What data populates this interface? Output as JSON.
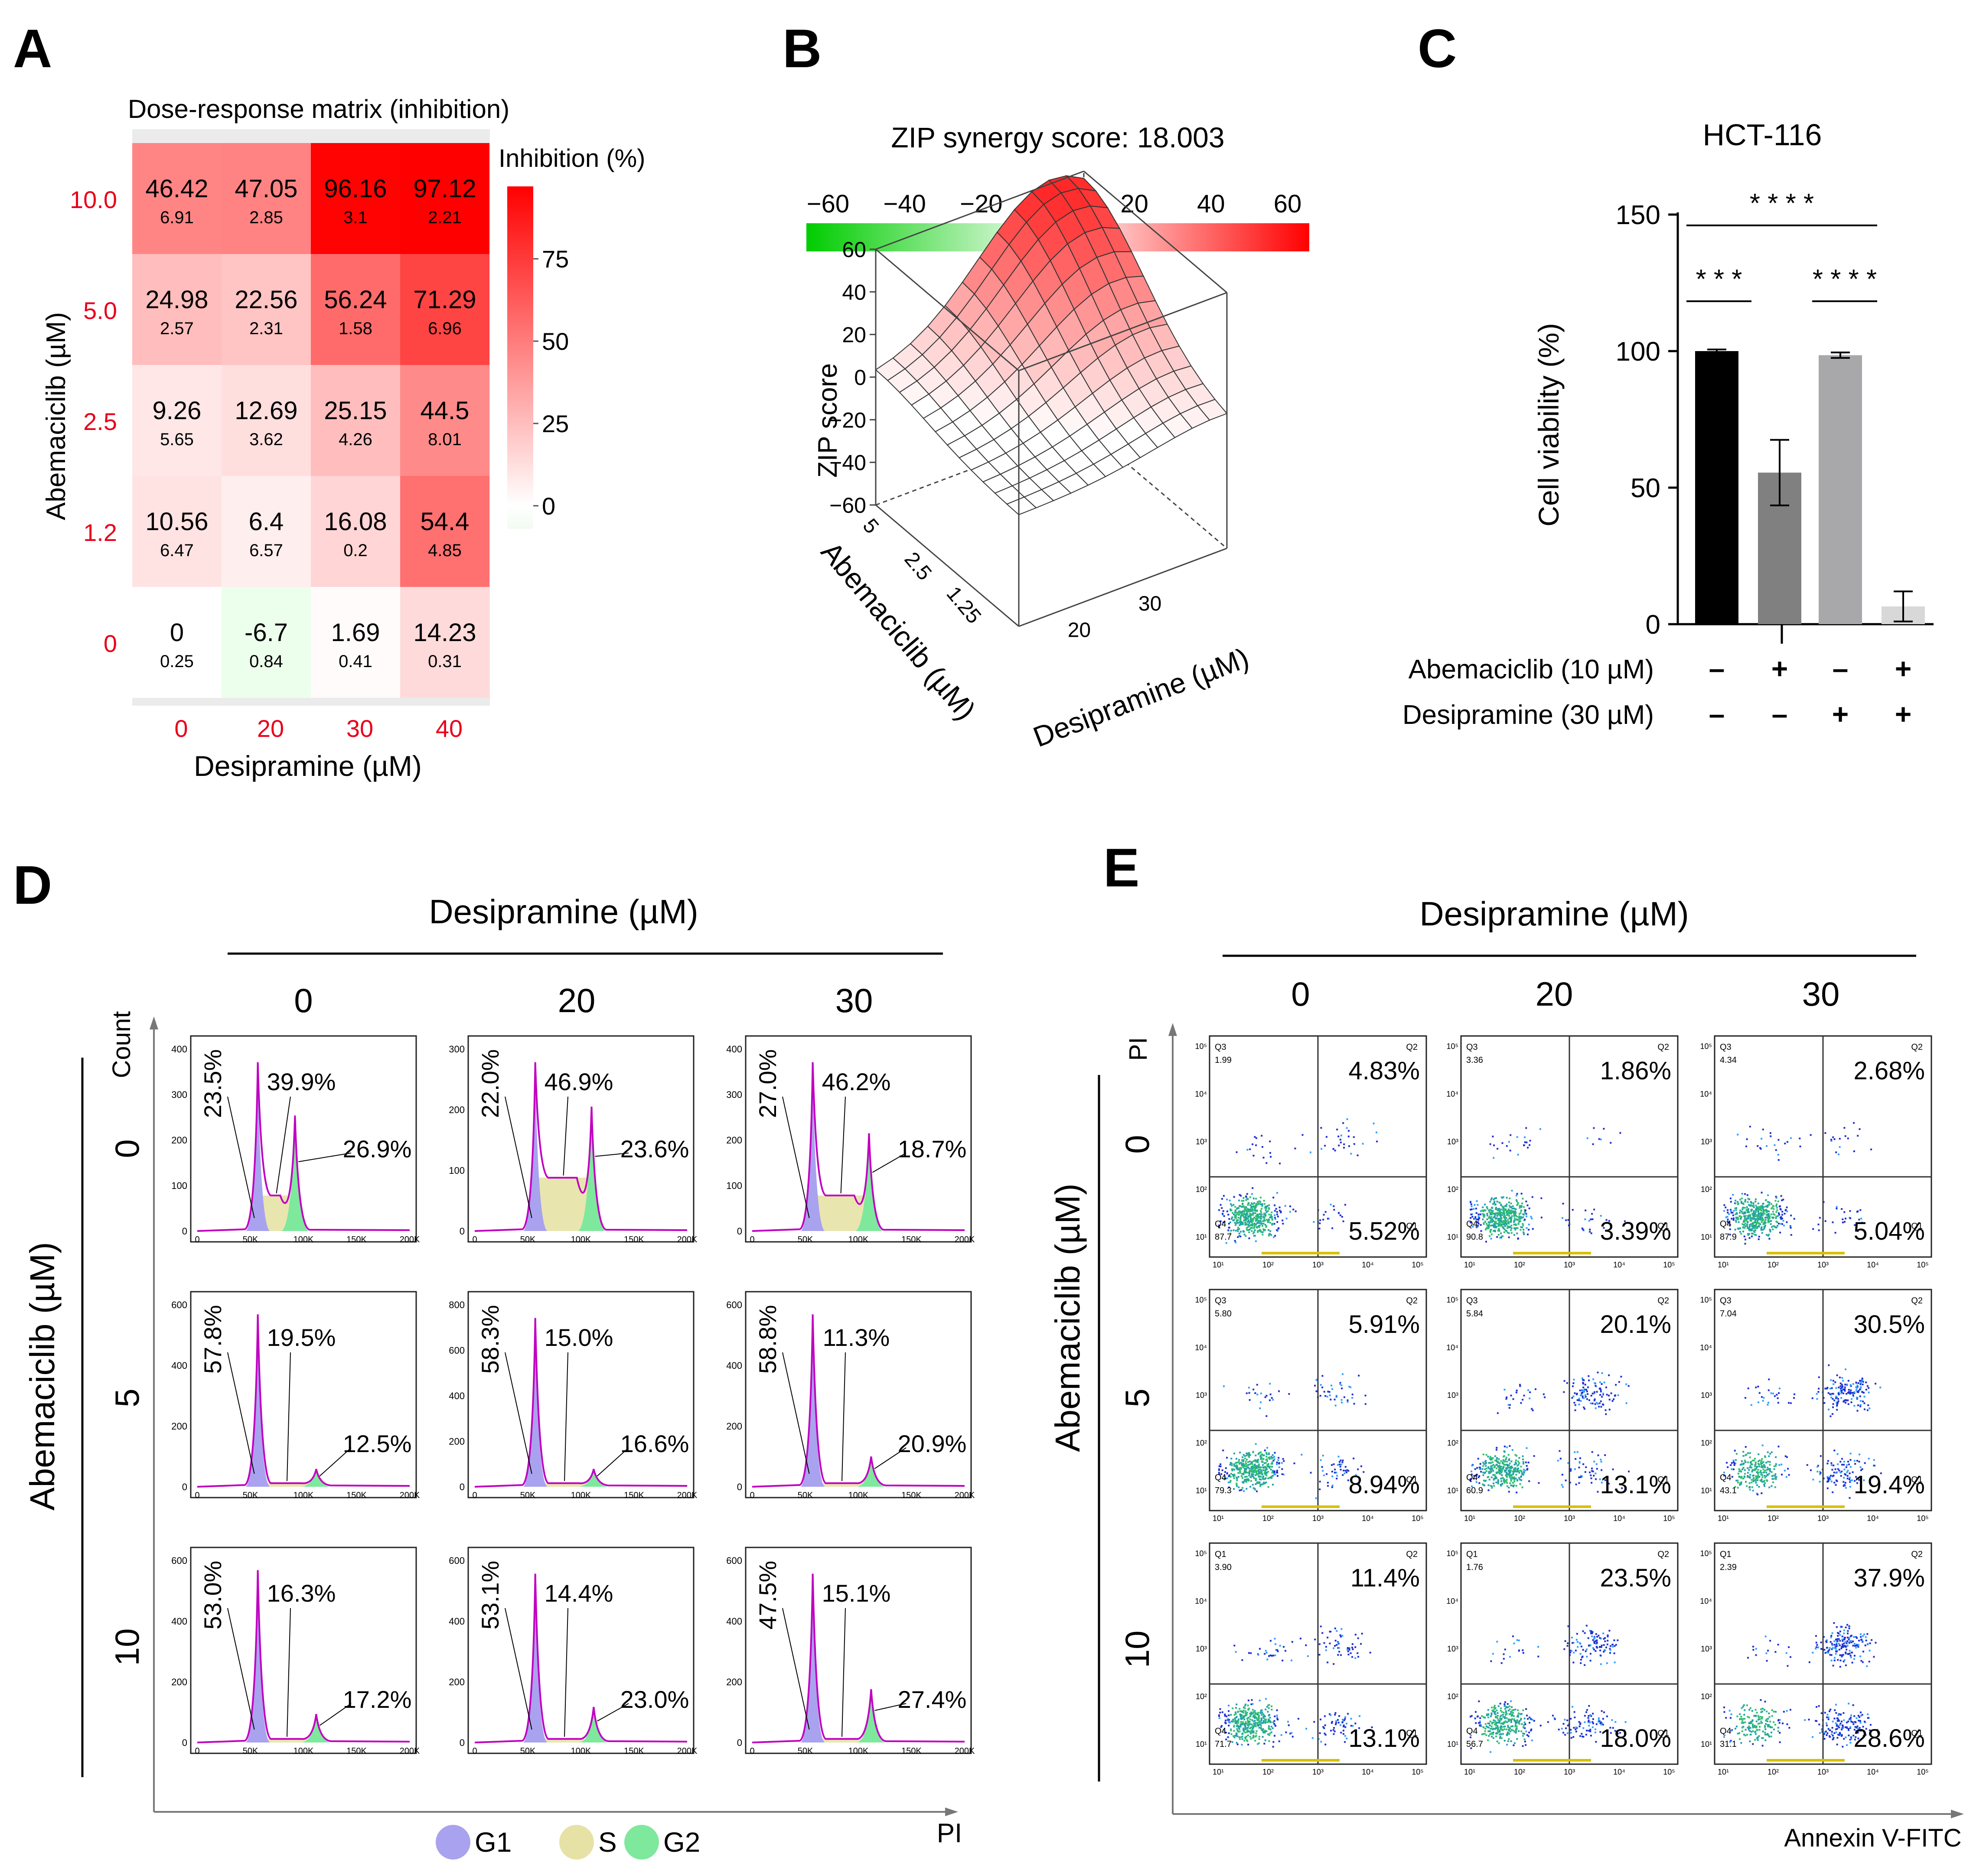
{
  "panels": {
    "A": "A",
    "B": "B",
    "C": "C",
    "D": "D",
    "E": "E"
  },
  "colors": {
    "red_label": "#e8001a",
    "heat_max": "#ff0000",
    "heat_zero": "#ffffff",
    "heat_neg": "#00c000",
    "g1": "#a9a2ee",
    "s": "#e6e2a6",
    "g2": "#7ee89d",
    "magenta": "#c000c0",
    "bar_black": "#000000",
    "bar_dgray": "#808080",
    "bar_lgray": "#a8a8ab",
    "bar_vlgray": "#d8d8d8"
  },
  "chart_data": [
    {
      "type": "heatmap",
      "title": "Dose-response matrix (inhibition)",
      "xlabel": "Desipramine (µM)",
      "ylabel": "Abemaciclib (µM)",
      "x_ticks": [
        "0",
        "20",
        "30",
        "40"
      ],
      "y_ticks": [
        "10.0",
        "5.0",
        "2.5",
        "1.2",
        "0"
      ],
      "values": [
        [
          "46.42",
          "47.05",
          "96.16",
          "97.12"
        ],
        [
          "24.98",
          "22.56",
          "56.24",
          "71.29"
        ],
        [
          "9.26",
          "12.69",
          "25.15",
          "44.5"
        ],
        [
          "10.56",
          "6.4",
          "16.08",
          "54.4"
        ],
        [
          "0",
          "-6.7",
          "1.69",
          "14.23"
        ]
      ],
      "sd": [
        [
          "6.91",
          "2.85",
          "3.1",
          "2.21"
        ],
        [
          "2.57",
          "2.31",
          "1.58",
          "6.96"
        ],
        [
          "5.65",
          "3.62",
          "4.26",
          "8.01"
        ],
        [
          "6.47",
          "6.57",
          "0.2",
          "4.85"
        ],
        [
          "0.25",
          "0.84",
          "0.41",
          "0.31"
        ]
      ],
      "colorbar": {
        "title": "Inhibition (%)",
        "ticks": [
          "75",
          "50",
          "25",
          "0"
        ],
        "range": [
          -7,
          97
        ]
      }
    },
    {
      "type": "surface3d",
      "title": "ZIP synergy score: 18.003",
      "zlabel": "ZIP score",
      "xlabel": "Abemaciclib (µM)",
      "ylabel": "Desipramine (µM)",
      "z_ticks": [
        "60",
        "40",
        "20",
        "0",
        "-20",
        "-40",
        "-60"
      ],
      "x_ticks": [
        "5",
        "2.5",
        "1.25"
      ],
      "y_ticks": [
        "20",
        "30"
      ],
      "zlim": [
        -60,
        60
      ],
      "colorbar": {
        "ticks": [
          "-60",
          "-40",
          "-20",
          "0",
          "20",
          "40",
          "60"
        ],
        "range": [
          -60,
          60
        ]
      }
    },
    {
      "type": "bar",
      "title": "HCT-116",
      "ylabel": "Cell viability (%)",
      "ylim": [
        0,
        150
      ],
      "y_ticks": [
        "150",
        "100",
        "50",
        "0"
      ],
      "values": [
        100,
        55.5,
        98.5,
        6.5
      ],
      "errors": [
        0.6,
        12,
        1.0,
        5.5
      ],
      "rows": [
        {
          "label": "Abemaciclib  (10 µM)",
          "signs": [
            "–",
            "+",
            "–",
            "+"
          ]
        },
        {
          "label": "Desipramine  (30 µM)",
          "signs": [
            "–",
            "–",
            "+",
            "+"
          ]
        }
      ],
      "significance": [
        "* * * *",
        "* * *",
        "* * * *"
      ]
    },
    {
      "type": "histogram-grid",
      "header": "Desipramine (µM)",
      "columns": [
        "0",
        "20",
        "30"
      ],
      "row_label": "Abemaciclib (µM)",
      "rows": [
        "0",
        "5",
        "10"
      ],
      "ylabel": "Count",
      "xlabel": "PI",
      "x_ticks": [
        "0",
        "50K",
        "100K",
        "150K",
        "200K"
      ],
      "legend": [
        "G1",
        "S",
        "G2"
      ],
      "cells": [
        [
          {
            "ymax": 400,
            "y_ticks": [
              "400",
              "300",
              "200",
              "100",
              "0"
            ],
            "g1": "23.5%",
            "s": "39.9%",
            "g2": "26.9%",
            "g1_h": 0.95,
            "s_h": 0.2,
            "g2_h": 0.65
          },
          {
            "ymax": 300,
            "y_ticks": [
              "300",
              "200",
              "100",
              "0"
            ],
            "g1": "22.0%",
            "s": "46.9%",
            "g2": "23.6%",
            "g1_h": 0.95,
            "s_h": 0.3,
            "g2_h": 0.7
          },
          {
            "ymax": 400,
            "y_ticks": [
              "400",
              "300",
              "200",
              "100",
              "0"
            ],
            "g1": "27.0%",
            "s": "46.2%",
            "g2": "18.7%",
            "g1_h": 0.95,
            "s_h": 0.2,
            "g2_h": 0.55
          }
        ],
        [
          {
            "ymax": 600,
            "y_ticks": [
              "600",
              "400",
              "200",
              "0"
            ],
            "g1": "57.8%",
            "s": "19.5%",
            "g2": "12.5%",
            "g1_h": 0.97,
            "s_h": 0.02,
            "g2_h": 0.1
          },
          {
            "ymax": 800,
            "y_ticks": [
              "800",
              "600",
              "400",
              "200",
              "0"
            ],
            "g1": "58.3%",
            "s": "15.0%",
            "g2": "16.6%",
            "g1_h": 0.95,
            "s_h": 0.02,
            "g2_h": 0.1
          },
          {
            "ymax": 600,
            "y_ticks": [
              "600",
              "400",
              "200",
              "0"
            ],
            "g1": "58.8%",
            "s": "11.3%",
            "g2": "20.9%",
            "g1_h": 0.97,
            "s_h": 0.02,
            "g2_h": 0.17
          }
        ],
        [
          {
            "ymax": 600,
            "y_ticks": [
              "600",
              "400",
              "200",
              "0"
            ],
            "g1": "53.0%",
            "s": "16.3%",
            "g2": "17.2%",
            "g1_h": 0.97,
            "s_h": 0.02,
            "g2_h": 0.16
          },
          {
            "ymax": 600,
            "y_ticks": [
              "600",
              "400",
              "200",
              "0"
            ],
            "g1": "53.1%",
            "s": "14.4%",
            "g2": "23.0%",
            "g1_h": 0.95,
            "s_h": 0.02,
            "g2_h": 0.2
          },
          {
            "ymax": 600,
            "y_ticks": [
              "600",
              "400",
              "200",
              "0"
            ],
            "g1": "47.5%",
            "s": "15.1%",
            "g2": "27.4%",
            "g1_h": 0.95,
            "s_h": 0.02,
            "g2_h": 0.3
          }
        ]
      ]
    },
    {
      "type": "scatter-grid",
      "header": "Desipramine (µM)",
      "columns": [
        "0",
        "20",
        "30"
      ],
      "row_label": "Abemaciclib (µM)",
      "rows": [
        "0",
        "5",
        "10"
      ],
      "ylabel": "PI",
      "xlabel": "Annexin  V-FITC",
      "ticks": [
        "10¹",
        "10²",
        "10³",
        "10⁴",
        "10⁵"
      ],
      "cells": [
        [
          {
            "ul": "Q3",
            "ul_val": "1.99",
            "ll": "Q4",
            "ll_val": "87.7",
            "q2": "4.83%",
            "q1": "5.52%",
            "late": 0.05,
            "early": 0.06
          },
          {
            "ul": "Q3",
            "ul_val": "3.36",
            "ll": "Q4",
            "ll_val": "90.8",
            "q2": "1.86%",
            "q1": "3.39%",
            "late": 0.02,
            "early": 0.04
          },
          {
            "ul": "Q3",
            "ul_val": "4.34",
            "ll": "Q4",
            "ll_val": "87.9",
            "q2": "2.68%",
            "q1": "5.04%",
            "late": 0.03,
            "early": 0.05
          }
        ],
        [
          {
            "ul": "Q3",
            "ul_val": "5.80",
            "ll": "Q4",
            "ll_val": "79.3",
            "q2": "5.91%",
            "q1": "8.94%",
            "late": 0.06,
            "early": 0.09
          },
          {
            "ul": "Q3",
            "ul_val": "5.84",
            "ll": "Q4",
            "ll_val": "60.9",
            "q2": "20.1%",
            "q1": "13.1%",
            "late": 0.2,
            "early": 0.13
          },
          {
            "ul": "Q3",
            "ul_val": "7.04",
            "ll": "Q4",
            "ll_val": "43.1",
            "q2": "30.5%",
            "q1": "19.4%",
            "late": 0.3,
            "early": 0.19
          }
        ],
        [
          {
            "ul": "Q1",
            "ul_val": "3.90",
            "ll": "Q4",
            "ll_val": "71.7",
            "q2": "11.4%",
            "q1": "13.1%",
            "late": 0.11,
            "early": 0.13
          },
          {
            "ul": "Q1",
            "ul_val": "1.76",
            "ll": "Q4",
            "ll_val": "56.7",
            "q2": "23.5%",
            "q1": "18.0%",
            "late": 0.23,
            "early": 0.18
          },
          {
            "ul": "Q1",
            "ul_val": "2.39",
            "ll": "Q4",
            "ll_val": "31.1",
            "q2": "37.9%",
            "q1": "28.6%",
            "late": 0.38,
            "early": 0.29
          }
        ]
      ],
      "quad_labels": {
        "q2": "Q2",
        "q1": "Q1"
      }
    }
  ]
}
